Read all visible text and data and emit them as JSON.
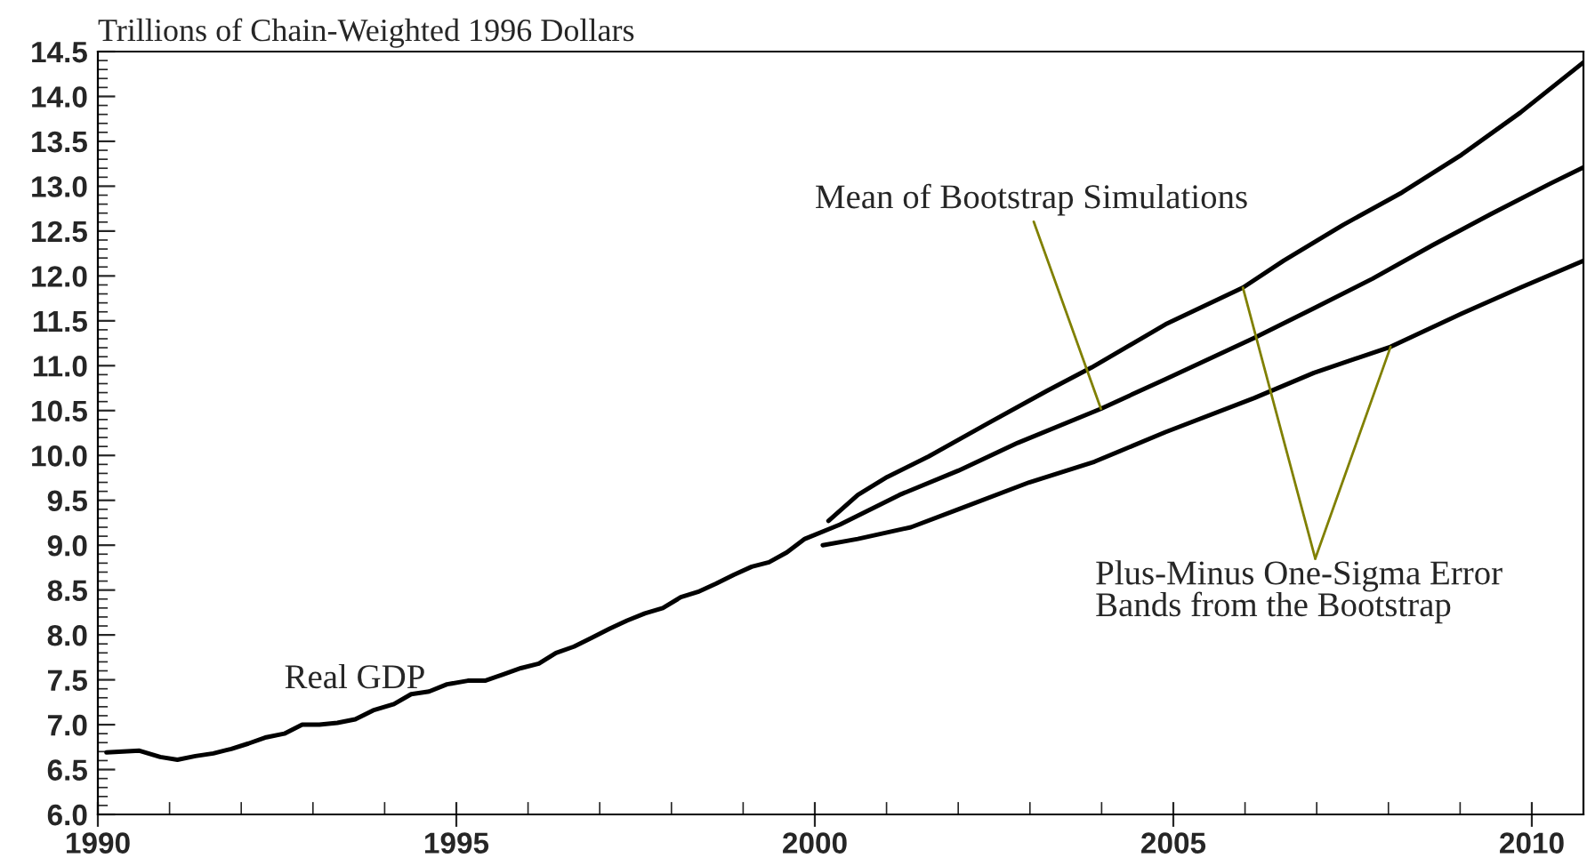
{
  "chart_data": {
    "type": "line",
    "ylabel": "Trillions of Chain-Weighted 1996 Dollars",
    "xlim": [
      1990,
      2010.72
    ],
    "ylim": [
      6.0,
      14.5
    ],
    "xticks": [
      {
        "value": 1990,
        "label": "1990"
      },
      {
        "value": 1991,
        "label": null
      },
      {
        "value": 1992,
        "label": null
      },
      {
        "value": 1993,
        "label": null
      },
      {
        "value": 1994,
        "label": null
      },
      {
        "value": 1995,
        "label": "1995"
      },
      {
        "value": 1996,
        "label": null
      },
      {
        "value": 1997,
        "label": null
      },
      {
        "value": 1998,
        "label": null
      },
      {
        "value": 1999,
        "label": null
      },
      {
        "value": 2000,
        "label": "2000"
      },
      {
        "value": 2001,
        "label": null
      },
      {
        "value": 2002,
        "label": null
      },
      {
        "value": 2003,
        "label": null
      },
      {
        "value": 2004,
        "label": null
      },
      {
        "value": 2005,
        "label": "2005"
      },
      {
        "value": 2006,
        "label": null
      },
      {
        "value": 2007,
        "label": null
      },
      {
        "value": 2008,
        "label": null
      },
      {
        "value": 2009,
        "label": null
      },
      {
        "value": 2010,
        "label": "2010"
      }
    ],
    "yticks": [
      {
        "value": 6.0,
        "label": "6.0"
      },
      {
        "value": 6.1,
        "label": null
      },
      {
        "value": 6.2,
        "label": null
      },
      {
        "value": 6.3,
        "label": null
      },
      {
        "value": 6.4,
        "label": null
      },
      {
        "value": 6.5,
        "label": "6.5"
      },
      {
        "value": 6.6,
        "label": null
      },
      {
        "value": 6.7,
        "label": null
      },
      {
        "value": 6.8,
        "label": null
      },
      {
        "value": 6.9,
        "label": null
      },
      {
        "value": 7.0,
        "label": "7.0"
      },
      {
        "value": 7.1,
        "label": null
      },
      {
        "value": 7.2,
        "label": null
      },
      {
        "value": 7.3,
        "label": null
      },
      {
        "value": 7.4,
        "label": null
      },
      {
        "value": 7.5,
        "label": "7.5"
      },
      {
        "value": 7.6,
        "label": null
      },
      {
        "value": 7.7,
        "label": null
      },
      {
        "value": 7.8,
        "label": null
      },
      {
        "value": 7.9,
        "label": null
      },
      {
        "value": 8.0,
        "label": "8.0"
      },
      {
        "value": 8.1,
        "label": null
      },
      {
        "value": 8.2,
        "label": null
      },
      {
        "value": 8.3,
        "label": null
      },
      {
        "value": 8.4,
        "label": null
      },
      {
        "value": 8.5,
        "label": "8.5"
      },
      {
        "value": 8.6,
        "label": null
      },
      {
        "value": 8.7,
        "label": null
      },
      {
        "value": 8.8,
        "label": null
      },
      {
        "value": 8.9,
        "label": null
      },
      {
        "value": 9.0,
        "label": "9.0"
      },
      {
        "value": 9.1,
        "label": null
      },
      {
        "value": 9.2,
        "label": null
      },
      {
        "value": 9.3,
        "label": null
      },
      {
        "value": 9.4,
        "label": null
      },
      {
        "value": 9.5,
        "label": "9.5"
      },
      {
        "value": 9.6,
        "label": null
      },
      {
        "value": 9.7,
        "label": null
      },
      {
        "value": 9.8,
        "label": null
      },
      {
        "value": 9.9,
        "label": null
      },
      {
        "value": 10.0,
        "label": "10.0"
      },
      {
        "value": 10.1,
        "label": null
      },
      {
        "value": 10.2,
        "label": null
      },
      {
        "value": 10.3,
        "label": null
      },
      {
        "value": 10.4,
        "label": null
      },
      {
        "value": 10.5,
        "label": "10.5"
      },
      {
        "value": 10.6,
        "label": null
      },
      {
        "value": 10.7,
        "label": null
      },
      {
        "value": 10.8,
        "label": null
      },
      {
        "value": 10.9,
        "label": null
      },
      {
        "value": 11.0,
        "label": "11.0"
      },
      {
        "value": 11.1,
        "label": null
      },
      {
        "value": 11.2,
        "label": null
      },
      {
        "value": 11.3,
        "label": null
      },
      {
        "value": 11.4,
        "label": null
      },
      {
        "value": 11.5,
        "label": "11.5"
      },
      {
        "value": 11.6,
        "label": null
      },
      {
        "value": 11.7,
        "label": null
      },
      {
        "value": 11.8,
        "label": null
      },
      {
        "value": 11.9,
        "label": null
      },
      {
        "value": 12.0,
        "label": "12.0"
      },
      {
        "value": 12.1,
        "label": null
      },
      {
        "value": 12.2,
        "label": null
      },
      {
        "value": 12.3,
        "label": null
      },
      {
        "value": 12.4,
        "label": null
      },
      {
        "value": 12.5,
        "label": "12.5"
      },
      {
        "value": 12.6,
        "label": null
      },
      {
        "value": 12.7,
        "label": null
      },
      {
        "value": 12.8,
        "label": null
      },
      {
        "value": 12.9,
        "label": null
      },
      {
        "value": 13.0,
        "label": "13.0"
      },
      {
        "value": 13.1,
        "label": null
      },
      {
        "value": 13.2,
        "label": null
      },
      {
        "value": 13.3,
        "label": null
      },
      {
        "value": 13.4,
        "label": null
      },
      {
        "value": 13.5,
        "label": "13.5"
      },
      {
        "value": 13.6,
        "label": null
      },
      {
        "value": 13.7,
        "label": null
      },
      {
        "value": 13.8,
        "label": null
      },
      {
        "value": 13.9,
        "label": null
      },
      {
        "value": 14.0,
        "label": "14.0"
      },
      {
        "value": 14.1,
        "label": null
      },
      {
        "value": 14.2,
        "label": null
      },
      {
        "value": 14.3,
        "label": null
      },
      {
        "value": 14.4,
        "label": null
      },
      {
        "value": 14.5,
        "label": "14.5"
      }
    ],
    "grid": false,
    "legend": false,
    "marker": "none",
    "line_style": "solid",
    "series": [
      {
        "color": "#000000",
        "x": [
          1990.12,
          1990.58,
          1990.87,
          1991.11,
          1991.36,
          1991.61,
          1991.86,
          1992.1,
          1992.35,
          1992.6,
          1992.85,
          1993.09,
          1993.34,
          1993.59,
          1993.84,
          1994.13,
          1994.37,
          1994.62,
          1994.87,
          1995.16,
          1995.4,
          1995.65,
          1995.9,
          1996.15,
          1996.39,
          1996.64,
          1996.89,
          1997.14,
          1997.38,
          1997.63,
          1997.88,
          1998.13,
          1998.37,
          1998.62,
          1998.87,
          1999.12,
          1999.36,
          1999.61,
          1999.86,
          2000.35,
          2001.18,
          2002.0,
          2002.83,
          2003.99,
          2004.89,
          2006.13,
          2006.96,
          2007.78,
          2008.61,
          2009.43,
          2010.26,
          2010.72
        ],
        "values": [
          6.69,
          6.71,
          6.64,
          6.61,
          6.65,
          6.68,
          6.73,
          6.79,
          6.86,
          6.9,
          7.0,
          7.0,
          7.02,
          7.06,
          7.16,
          7.23,
          7.34,
          7.37,
          7.45,
          7.49,
          7.49,
          7.56,
          7.63,
          7.68,
          7.8,
          7.87,
          7.97,
          8.07,
          8.16,
          8.24,
          8.3,
          8.42,
          8.48,
          8.57,
          8.67,
          8.76,
          8.81,
          8.92,
          9.07,
          9.23,
          9.56,
          9.83,
          10.14,
          10.52,
          10.85,
          11.31,
          11.64,
          11.97,
          12.34,
          12.69,
          13.03,
          13.21
        ]
      },
      {
        "color": "#000000",
        "x": [
          2000.19,
          2000.6,
          2001.01,
          2001.59,
          2002.42,
          2003.24,
          2003.86,
          2004.89,
          2005.97,
          2006.54,
          2007.37,
          2008.19,
          2009.02,
          2009.84,
          2010.72
        ],
        "values": [
          9.27,
          9.56,
          9.76,
          9.99,
          10.36,
          10.72,
          10.98,
          11.46,
          11.87,
          12.17,
          12.57,
          12.93,
          13.35,
          13.82,
          14.38
        ]
      },
      {
        "color": "#000000",
        "x": [
          2000.11,
          2000.6,
          2001.34,
          2002.0,
          2002.99,
          2003.9,
          2004.89,
          2006.13,
          2006.96,
          2008.03,
          2009.02,
          2009.84,
          2010.72
        ],
        "values": [
          9.0,
          9.07,
          9.2,
          9.4,
          9.7,
          9.93,
          10.26,
          10.64,
          10.92,
          11.21,
          11.58,
          11.87,
          12.17
        ]
      }
    ],
    "annotations": [
      "Real GDP",
      {
        "text": "Mean of Bootstrap Simulations",
        "x": 2003.99,
        "y": 10.52
      },
      {
        "text": "Plus-Minus One-Sigma Error\nBands from the Bootstrap",
        "x": 2005.97,
        "y": 11.87
      }
    ]
  }
}
